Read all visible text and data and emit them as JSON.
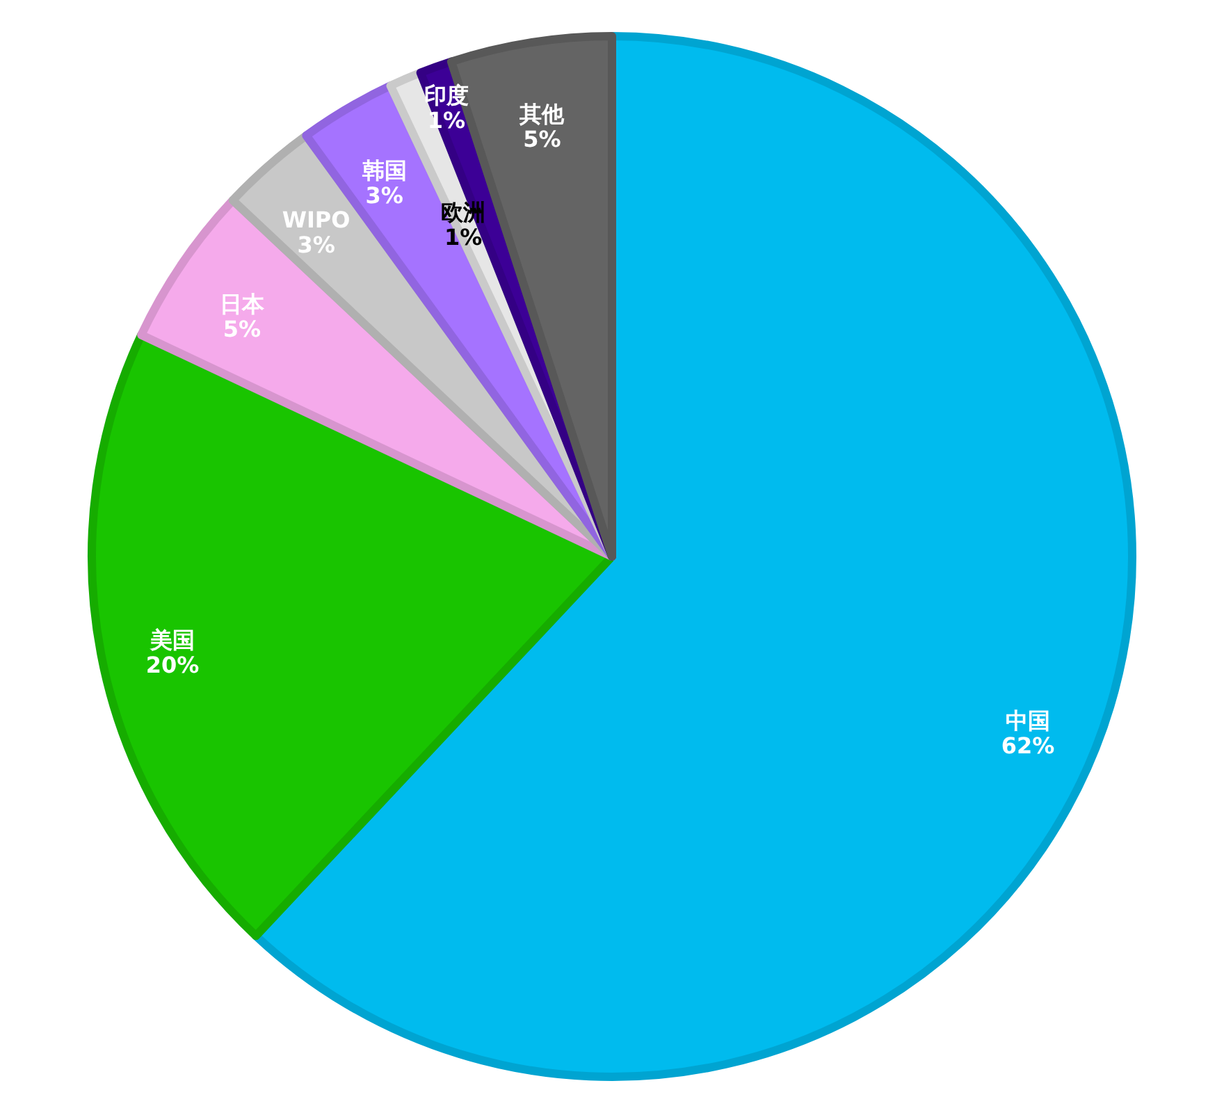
{
  "chart_data": {
    "type": "pie",
    "categories": [
      "中国",
      "美国",
      "日本",
      "WIPO",
      "韩国",
      "欧洲",
      "印度",
      "其他"
    ],
    "values": [
      62,
      20,
      5,
      3,
      3,
      1,
      1,
      5
    ],
    "value_labels": [
      "62%",
      "20%",
      "5%",
      "3%",
      "3%",
      "1%",
      "1%",
      "5%"
    ],
    "colors": [
      "#00bbee",
      "#19c400",
      "#f5aaeb",
      "#c8c8c8",
      "#a573ff",
      "#e6e6e6",
      "#3c0096",
      "#646464"
    ]
  }
}
